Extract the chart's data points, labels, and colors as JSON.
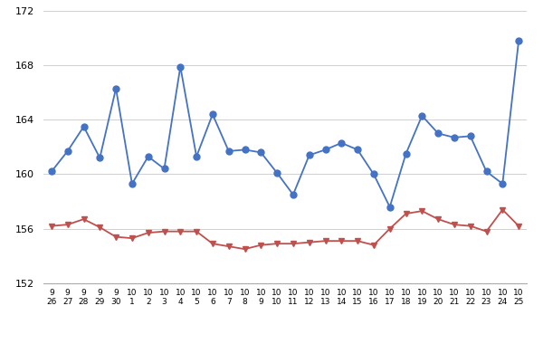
{
  "x_labels": [
    "9\n26",
    "9\n27",
    "9\n28",
    "9\n29",
    "9\n30",
    "10\n1",
    "10\n2",
    "10\n3",
    "10\n4",
    "10\n5",
    "10\n6",
    "10\n7",
    "10\n8",
    "10\n9",
    "10\n10",
    "10\n11",
    "10\n12",
    "10\n13",
    "10\n14",
    "10\n15",
    "10\n16",
    "10\n17",
    "10\n18",
    "10\n19",
    "10\n20",
    "10\n21",
    "10\n22",
    "10\n23",
    "10\n24",
    "10\n25"
  ],
  "blue_values": [
    160.2,
    161.7,
    163.5,
    161.2,
    166.3,
    159.3,
    161.3,
    160.4,
    167.9,
    161.3,
    164.4,
    161.7,
    161.8,
    161.6,
    160.1,
    158.5,
    161.4,
    161.8,
    162.3,
    161.8,
    160.0,
    157.6,
    161.5,
    164.3,
    163.0,
    162.7,
    162.8,
    160.2,
    159.3,
    169.8
  ],
  "red_values": [
    156.2,
    156.3,
    156.7,
    156.1,
    155.4,
    155.3,
    155.7,
    155.8,
    155.8,
    155.8,
    154.9,
    154.7,
    154.5,
    154.8,
    154.9,
    154.9,
    155.0,
    155.1,
    155.1,
    155.1,
    154.8,
    156.0,
    157.1,
    157.3,
    156.7,
    156.3,
    156.2,
    155.8,
    157.4,
    156.2
  ],
  "ylim": [
    152,
    172
  ],
  "yticks": [
    152,
    156,
    160,
    164,
    168,
    172
  ],
  "blue_color": "#4472c4",
  "red_color": "#c0504d",
  "bg_color": "#ffffff",
  "grid_color": "#d0d0d0",
  "marker_size_blue": 5,
  "marker_size_red": 4,
  "linewidth": 1.3
}
